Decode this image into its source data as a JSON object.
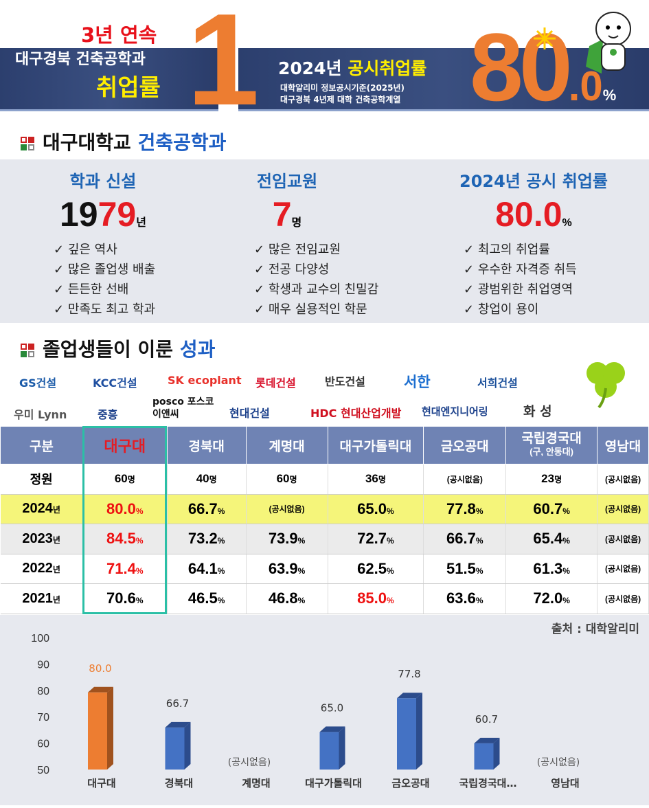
{
  "header": {
    "streak": "3년 연속",
    "rank": "1",
    "left_line1": "대구경북 건축공학과",
    "left_line2": "취업률",
    "year_label": "2024년",
    "rate_label": "공시취업률",
    "note1": "대학알리미 정보공시기준(2025년)",
    "note2": "대구경북 4년제 대학 건축공학계열",
    "rate_big": "80",
    "rate_dec": ".0",
    "rate_pct": "%"
  },
  "dept": {
    "title_a": "대구대학교",
    "title_b": "건축공학과",
    "cols": [
      {
        "heading": "학과 신설",
        "value_a": "19",
        "value_b": "79",
        "unit": "년",
        "checks": [
          "깊은 역사",
          "많은 졸업생 배출",
          "든든한 선배",
          "만족도 최고 학과"
        ]
      },
      {
        "heading": "전임교원",
        "value_a": "",
        "value_b": "7",
        "unit": "명",
        "checks": [
          "많은 전임교원",
          "전공 다양성",
          "학생과 교수의 친밀감",
          "매우 실용적인 학문"
        ]
      },
      {
        "heading": "2024년 공시 취업률",
        "value_a": "",
        "value_b": "80.0",
        "unit": "%",
        "checks": [
          "최고의 취업률",
          "우수한 자격증 취득",
          "광범위한 취업영역",
          "창업이 용이"
        ]
      }
    ]
  },
  "achievements": {
    "title_a": "졸업생들이 이룬",
    "title_b": "성과",
    "logos": [
      "GS건설",
      "KCC건설",
      "SK ecoplant",
      "롯데건설",
      "반도건설",
      "서한",
      "서희건설",
      "우미 Lynn",
      "중흥",
      "posco 포스코이앤씨",
      "현대건설",
      "HDC 현대산업개발",
      "현대엔지니어링",
      "화 성"
    ]
  },
  "table": {
    "headers": [
      "구분",
      "대구대",
      "경북대",
      "계명대",
      "대구가톨릭대",
      "금오공대",
      "국립경국대",
      "영남대"
    ],
    "header_sub": "(구, 안동대)",
    "rows": [
      {
        "label": "정원",
        "cells": [
          "60",
          "40",
          "60",
          "36",
          "(공시없음)",
          "23",
          "(공시없음)"
        ],
        "unit": "명"
      },
      {
        "label": "2024",
        "cells": [
          "80.0",
          "66.7",
          "(공시없음)",
          "65.0",
          "77.8",
          "60.7",
          "(공시없음)"
        ],
        "unit": "%"
      },
      {
        "label": "2023",
        "cells": [
          "84.5",
          "73.2",
          "73.9",
          "72.7",
          "66.7",
          "65.4",
          "(공시없음)"
        ],
        "unit": "%"
      },
      {
        "label": "2022",
        "cells": [
          "71.4",
          "64.1",
          "63.9",
          "62.5",
          "51.5",
          "61.3",
          "(공시없음)"
        ],
        "unit": "%"
      },
      {
        "label": "2021",
        "cells": [
          "70.6",
          "46.5",
          "46.8",
          "85.0",
          "63.6",
          "72.0",
          "(공시없음)"
        ],
        "unit": "%"
      }
    ],
    "year_suffix": "년"
  },
  "source": "출처 : 대학알리미",
  "chart_data": {
    "type": "bar",
    "categories": [
      "대구대",
      "경북대",
      "계명대",
      "대구가톨릭대",
      "금오공대",
      "국립경국대…",
      "영남대"
    ],
    "values": [
      80.0,
      66.7,
      null,
      65.0,
      77.8,
      60.7,
      null
    ],
    "missing_label": "(공시없음)",
    "ylim": [
      50,
      100
    ],
    "yticks": [
      50,
      60,
      70,
      80,
      90,
      100
    ],
    "colors": {
      "highlight": "#ed7d31",
      "default": "#4472c4"
    }
  }
}
